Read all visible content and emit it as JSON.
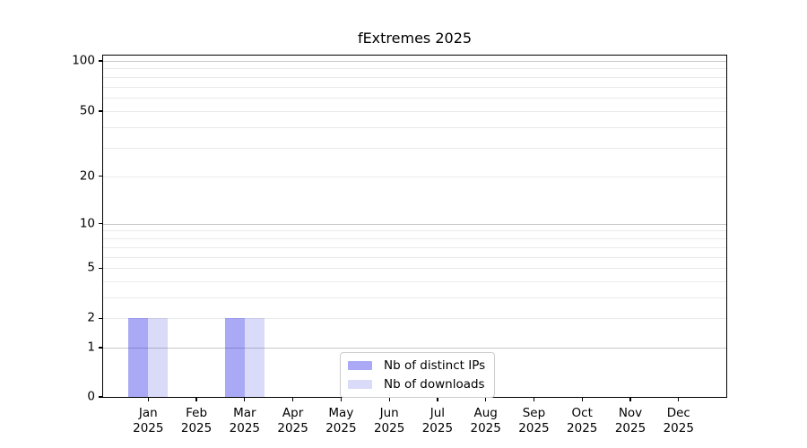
{
  "chart_data": {
    "type": "bar",
    "title": "fExtremes 2025",
    "categories": [
      "Jan 2025",
      "Feb 2025",
      "Mar 2025",
      "Apr 2025",
      "May 2025",
      "Jun 2025",
      "Jul 2025",
      "Aug 2025",
      "Sep 2025",
      "Oct 2025",
      "Nov 2025",
      "Dec 2025"
    ],
    "series": [
      {
        "name": "Nb of distinct IPs",
        "color": "rgba(10,10,225,0.35)",
        "values": [
          2,
          0,
          2,
          0,
          0,
          0,
          0,
          0,
          0,
          0,
          0,
          0
        ]
      },
      {
        "name": "Nb of downloads",
        "color": "rgba(10,10,215,0.15)",
        "values": [
          2,
          0,
          2,
          0,
          0,
          0,
          0,
          0,
          0,
          0,
          0,
          0
        ]
      }
    ],
    "y_axis": {
      "scale": "log1p",
      "tick_labels": [
        "0",
        "1",
        "2",
        "5",
        "10",
        "20",
        "50",
        "100"
      ],
      "tick_values": [
        0,
        1,
        2,
        5,
        10,
        20,
        50,
        100
      ],
      "major_grid_values": [
        1,
        10,
        100
      ],
      "minor_grid_values": [
        2,
        3,
        4,
        5,
        6,
        7,
        8,
        9,
        20,
        30,
        40,
        50,
        60,
        70,
        80,
        90
      ],
      "range": [
        0,
        110
      ]
    },
    "x_axis": {
      "year_line": "2025"
    },
    "legend": {
      "position": "lower center",
      "entries": [
        "Nb of distinct IPs",
        "Nb of downloads"
      ]
    },
    "grid": true,
    "colors": {
      "bar_distinct_ips": "rgba(10,10,225,0.35)",
      "bar_downloads": "rgba(10,10,215,0.15)",
      "grid_major": "#c9c9c9",
      "grid_minor": "#eaeaea",
      "axis": "#000000",
      "legend_border": "#cccccc",
      "background": "#ffffff"
    }
  }
}
